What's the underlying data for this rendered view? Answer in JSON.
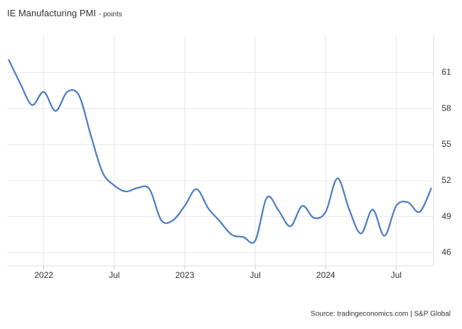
{
  "chart_data": {
    "type": "line",
    "title": "IE Manufacturing PMI",
    "subtitle": "- points",
    "source": "Source: tradingeconomics.com | S&P Global",
    "categories": [
      null,
      null,
      null,
      "2022",
      null,
      null,
      null,
      null,
      null,
      "Jul",
      null,
      null,
      null,
      null,
      null,
      "2023",
      null,
      null,
      null,
      null,
      null,
      "Jul",
      null,
      null,
      null,
      null,
      null,
      "2024",
      null,
      null,
      null,
      null,
      null,
      "Jul",
      null,
      null,
      null
    ],
    "series": [
      {
        "name": "IE Manufacturing PMI",
        "color": "#4a7cc2",
        "values": [
          62.1,
          60.1,
          58.3,
          59.4,
          57.8,
          59.4,
          59.1,
          55.8,
          52.7,
          51.6,
          51.1,
          51.4,
          51.3,
          48.7,
          48.7,
          49.9,
          51.3,
          49.7,
          48.6,
          47.5,
          47.3,
          47.0,
          50.6,
          49.5,
          48.2,
          49.9,
          48.9,
          49.4,
          52.2,
          49.6,
          47.6,
          49.6,
          47.4,
          49.9,
          50.2,
          49.4,
          51.4
        ]
      }
    ],
    "ylim": [
      44.9,
      64.1
    ],
    "yticks": [
      46,
      49,
      52,
      55,
      58,
      61
    ],
    "grid": true
  }
}
